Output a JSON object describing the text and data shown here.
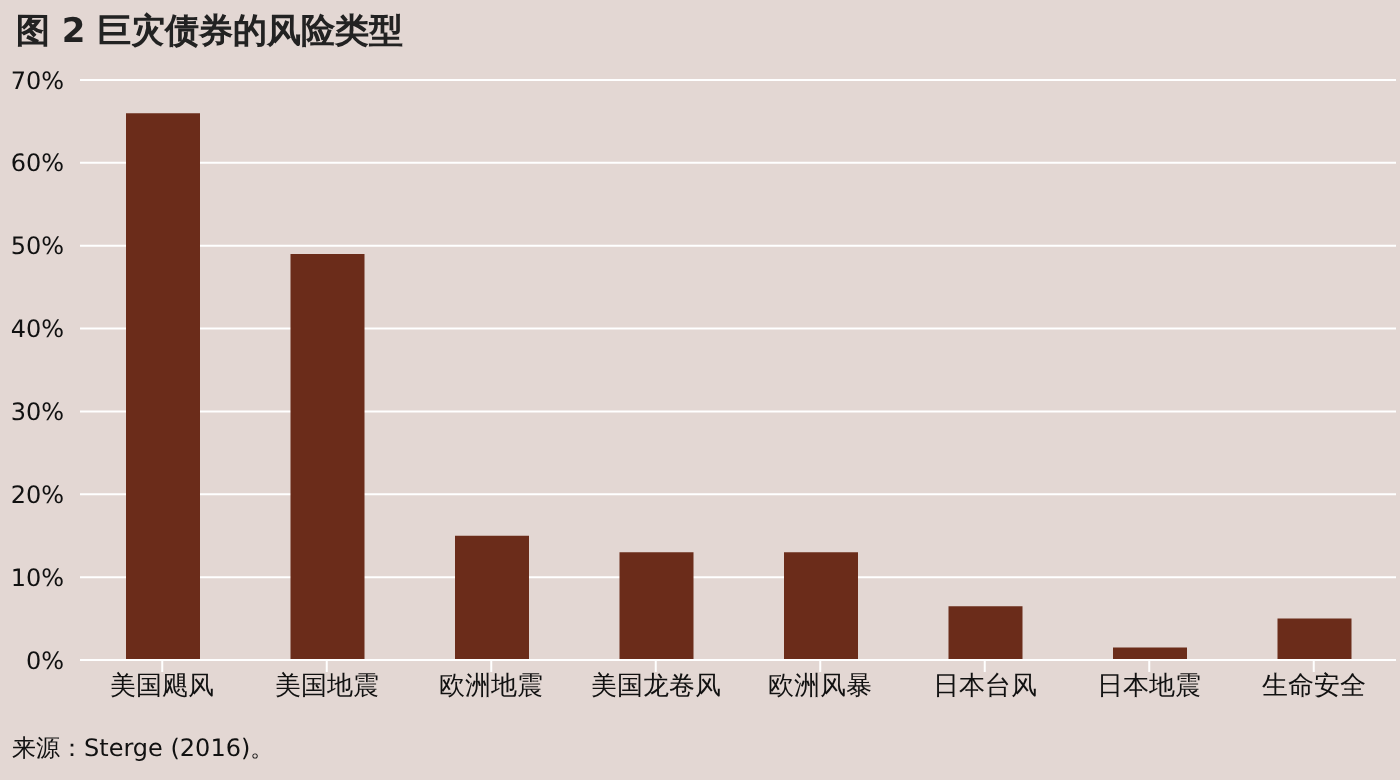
{
  "chart_data": {
    "type": "bar",
    "title": "图 2  巨灾债券的风险类型",
    "categories": [
      "美国飓风",
      "美国地震",
      "欧洲地震",
      "美国龙卷风",
      "欧洲风暴",
      "日本台风",
      "日本地震",
      "生命安全"
    ],
    "values": [
      66,
      49,
      15,
      13,
      13,
      6.5,
      1.5,
      5
    ],
    "color": "#6b2c1a",
    "ylim": [
      0,
      70
    ],
    "yticks": [
      {
        "value": 0,
        "label": "0%"
      },
      {
        "value": 10,
        "label": "10%"
      },
      {
        "value": 20,
        "label": "20%"
      },
      {
        "value": 30,
        "label": "30%"
      },
      {
        "value": 40,
        "label": "40%"
      },
      {
        "value": 50,
        "label": "50%"
      },
      {
        "value": 60,
        "label": "60%"
      },
      {
        "value": 70,
        "label": "70%"
      }
    ],
    "grid": "y",
    "annotations": [
      "来源：Sterge (2016)。"
    ]
  }
}
